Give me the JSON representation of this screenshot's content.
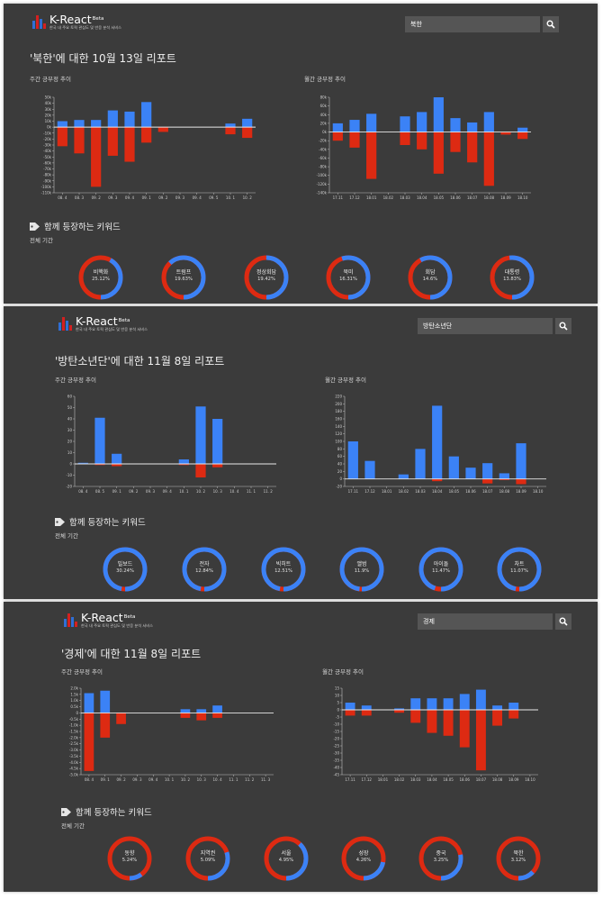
{
  "app": {
    "name": "K-React",
    "badge": "Beta",
    "tagline": "한국 내 주요 토픽 관심도 및 반응 분석 서비스"
  },
  "colors": {
    "positive": "#3b82f6",
    "negative": "#dd2a12",
    "panel_bg": "#3b3b3b"
  },
  "reports": [
    {
      "search_value": "북한",
      "title": "'북한'에 대한 10월 13일 리포트",
      "weekly_label": "주간 긍부정 추이",
      "monthly_label": "월간 긍부정 추이",
      "keywords_title": "함께 등장하는 키워드",
      "keywords_period": "전체 기간",
      "weekly_chart": {
        "type": "bar",
        "categories": [
          "08. 4",
          "08. 3",
          "09. 2",
          "09. 3",
          "09. 4",
          "09. 1",
          "09. 2",
          "09. 3",
          "09. 4",
          "09. 5",
          "10. 1",
          "10. 2"
        ],
        "series": [
          {
            "name": "positive",
            "values": [
              10,
              12,
              12,
              28,
              26,
              42,
              0,
              0,
              0,
              0,
              6,
              14
            ]
          },
          {
            "name": "negative",
            "values": [
              -32,
              -44,
              -100,
              -48,
              -58,
              -26,
              -8,
              0,
              0,
              0,
              -12,
              -18
            ]
          }
        ],
        "ylim": [
          -110,
          50
        ],
        "yticks": [
          50,
          40,
          30,
          20,
          10,
          0,
          -10,
          -20,
          -30,
          -40,
          -50,
          -60,
          -70,
          -80,
          -90,
          -100,
          -110
        ],
        "ytick_labels": [
          "50k",
          "40k",
          "30k",
          "20k",
          "10k",
          "0k",
          "-10k",
          "-20k",
          "-30k",
          "-40k",
          "-50k",
          "-60k",
          "-70k",
          "-80k",
          "-90k",
          "-100k",
          "-110k"
        ]
      },
      "monthly_chart": {
        "type": "bar",
        "categories": [
          "17.11",
          "17.12",
          "18.01",
          "18.02",
          "18.03",
          "18.04",
          "18.05",
          "18.06",
          "18.07",
          "18.08",
          "18.09",
          "18.10"
        ],
        "series": [
          {
            "name": "positive",
            "values": [
              20,
              28,
              42,
              0,
              36,
              46,
              80,
              32,
              22,
              46,
              0,
              10
            ]
          },
          {
            "name": "negative",
            "values": [
              -20,
              -36,
              -108,
              0,
              -30,
              -40,
              -96,
              -46,
              -70,
              -124,
              -6,
              -16
            ]
          }
        ],
        "ylim": [
          -140,
          80
        ],
        "yticks": [
          80,
          60,
          40,
          20,
          0,
          -20,
          -40,
          -60,
          -80,
          -100,
          -120,
          -140
        ],
        "ytick_labels": [
          "80k",
          "60k",
          "40k",
          "20k",
          "0k",
          "-20k",
          "-40k",
          "-60k",
          "-80k",
          "-100k",
          "-120k",
          "-140k"
        ]
      },
      "keywords": [
        {
          "name": "비핵화",
          "pct": "25.12%",
          "positive": 0.42
        },
        {
          "name": "트럼프",
          "pct": "19.63%",
          "positive": 0.62
        },
        {
          "name": "정상회담",
          "pct": "19.42%",
          "positive": 0.5
        },
        {
          "name": "북미",
          "pct": "16.31%",
          "positive": 0.55
        },
        {
          "name": "회담",
          "pct": "14.6%",
          "positive": 0.58
        },
        {
          "name": "대통령",
          "pct": "13.83%",
          "positive": 0.52
        }
      ]
    },
    {
      "search_value": "방탄소년단",
      "title": "'방탄소년단'에 대한 11월 8일 리포트",
      "weekly_label": "주간 긍부정 추이",
      "monthly_label": "월간 긍부정 추이",
      "keywords_title": "함께 등장하는 키워드",
      "keywords_period": "전체 기간",
      "weekly_chart": {
        "type": "bar",
        "categories": [
          "08. 4",
          "08. 5",
          "09. 1",
          "09. 2",
          "09. 3",
          "09. 4",
          "10. 1",
          "10. 2",
          "10. 3",
          "10. 4",
          "11. 1",
          "11. 2"
        ],
        "series": [
          {
            "name": "positive",
            "values": [
              1,
              41,
              9,
              0,
              0,
              0,
              4,
              51,
              40,
              0,
              0,
              0
            ]
          },
          {
            "name": "negative",
            "values": [
              0,
              -1,
              -2,
              0,
              0,
              0,
              -1,
              -12,
              -3,
              0,
              0,
              0
            ]
          }
        ],
        "ylim": [
          -20,
          60
        ],
        "yticks": [
          60,
          50,
          40,
          30,
          20,
          10,
          0,
          -10,
          -20
        ],
        "ytick_labels": [
          "60",
          "50",
          "40",
          "30",
          "20",
          "10",
          "0",
          "-10",
          "-20"
        ]
      },
      "monthly_chart": {
        "type": "bar",
        "categories": [
          "17.11",
          "17.12",
          "18.01",
          "18.02",
          "18.03",
          "18.04",
          "18.05",
          "18.06",
          "18.07",
          "18.08",
          "18.09",
          "18.10"
        ],
        "series": [
          {
            "name": "positive",
            "values": [
              100,
              48,
              0,
              12,
              80,
              195,
              60,
              30,
              42,
              15,
              95,
              0
            ]
          },
          {
            "name": "negative",
            "values": [
              0,
              0,
              0,
              0,
              0,
              -6,
              0,
              0,
              -12,
              -3,
              -14,
              0
            ]
          }
        ],
        "ylim": [
          -20,
          220
        ],
        "yticks": [
          220,
          200,
          180,
          160,
          140,
          120,
          100,
          80,
          60,
          40,
          20,
          0,
          -20
        ],
        "ytick_labels": [
          "220",
          "200",
          "180",
          "160",
          "140",
          "120",
          "100",
          "80",
          "60",
          "40",
          "20",
          "0",
          "-20"
        ]
      },
      "keywords": [
        {
          "name": "빌보드",
          "pct": "30.24%",
          "positive": 0.97
        },
        {
          "name": "전자",
          "pct": "12.84%",
          "positive": 0.97
        },
        {
          "name": "빅히트",
          "pct": "12.51%",
          "positive": 0.97
        },
        {
          "name": "앨범",
          "pct": "11.9%",
          "positive": 0.98
        },
        {
          "name": "아이돌",
          "pct": "11.47%",
          "positive": 0.95
        },
        {
          "name": "차트",
          "pct": "11.07%",
          "positive": 0.97
        }
      ]
    },
    {
      "search_value": "경제",
      "title": "'경제'에 대한 11월 8일 리포트",
      "weekly_label": "주간 긍부정 추이",
      "monthly_label": "월간 긍부정 추이",
      "keywords_title": "함께 등장하는 키워드",
      "keywords_period": "전체 기간",
      "weekly_chart": {
        "type": "bar",
        "categories": [
          "08. 4",
          "09. 1",
          "09. 2",
          "09. 3",
          "09. 4",
          "10. 1",
          "10. 2",
          "10. 3",
          "10. 4",
          "11. 1",
          "11. 2",
          "11. 3"
        ],
        "series": [
          {
            "name": "positive",
            "values": [
              1.6,
              1.8,
              0,
              0,
              0,
              0,
              0.3,
              0.3,
              0.6,
              0,
              0,
              0
            ]
          },
          {
            "name": "negative",
            "values": [
              -4.7,
              -2.0,
              -0.9,
              0,
              0,
              0,
              -0.4,
              -0.6,
              -0.4,
              0,
              0,
              0
            ]
          }
        ],
        "ylim": [
          -5.0,
          2.0
        ],
        "yticks": [
          2.0,
          1.5,
          1.0,
          0.5,
          0,
          -0.5,
          -1.0,
          -1.5,
          -2.0,
          -2.5,
          -3.0,
          -3.5,
          -4.0,
          -4.5,
          -5.0
        ],
        "ytick_labels": [
          "2.0k",
          "1.5k",
          "1.0k",
          "0.5k",
          "0",
          "-0.5k",
          "-1.0k",
          "-1.5k",
          "-2.0k",
          "-2.5k",
          "-3.0k",
          "-3.5k",
          "-4.0k",
          "-4.5k",
          "-5.0k"
        ]
      },
      "monthly_chart": {
        "type": "bar",
        "categories": [
          "17.11",
          "17.12",
          "18.01",
          "18.02",
          "18.03",
          "18.04",
          "18.05",
          "18.06",
          "18.07",
          "18.08",
          "18.09",
          "18.10"
        ],
        "series": [
          {
            "name": "positive",
            "values": [
              5,
              3,
              0,
              1,
              8,
              8,
              8,
              11,
              14,
              3,
              5,
              0
            ]
          },
          {
            "name": "negative",
            "values": [
              -4,
              -4,
              0,
              -2,
              -9,
              -16,
              -18,
              -26,
              -42,
              -11,
              -6,
              0
            ]
          }
        ],
        "ylim": [
          -45,
          15
        ],
        "yticks": [
          15,
          10,
          5,
          0,
          -5,
          -10,
          -15,
          -20,
          -25,
          -30,
          -35,
          -40,
          -45
        ],
        "ytick_labels": [
          "15",
          "10",
          "5",
          "0",
          "-5",
          "-10",
          "-15",
          "-20",
          "-25",
          "-30",
          "-35",
          "-40",
          "-45"
        ]
      },
      "keywords": [
        {
          "name": "동향",
          "pct": "5.24%",
          "positive": 0.1
        },
        {
          "name": "지역권",
          "pct": "5.09%",
          "positive": 0.3
        },
        {
          "name": "서울",
          "pct": "4.95%",
          "positive": 0.38
        },
        {
          "name": "성장",
          "pct": "4.26%",
          "positive": 0.22
        },
        {
          "name": "중국",
          "pct": "3.25%",
          "positive": 0.28
        },
        {
          "name": "북한",
          "pct": "3.12%",
          "positive": 0.13
        }
      ]
    }
  ]
}
